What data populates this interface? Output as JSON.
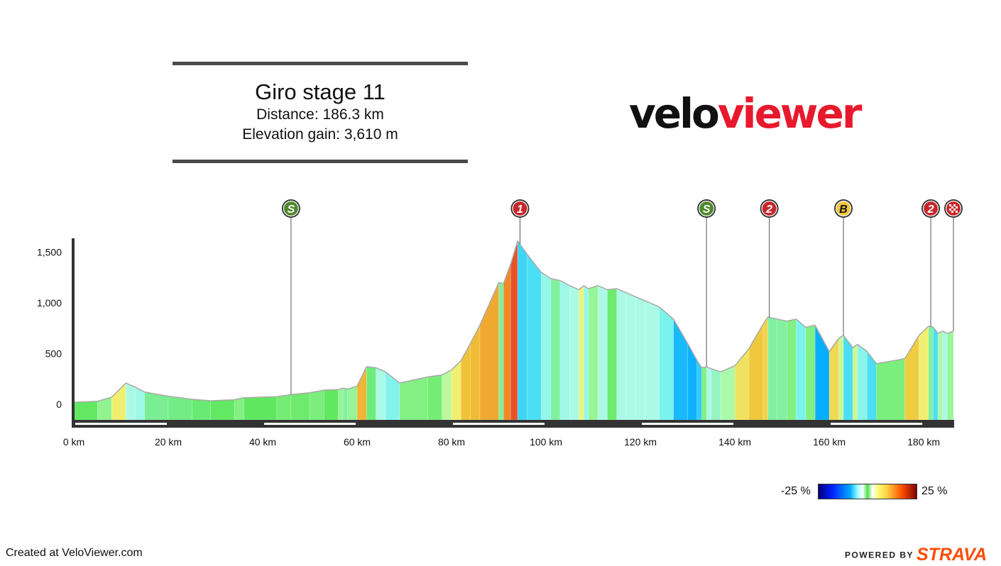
{
  "header": {
    "title": "Giro stage 11",
    "distance": "Distance: 186.3 km",
    "elevation": "Elevation gain: 3,610 m"
  },
  "logo": {
    "part1": "velo",
    "part2": "viewer"
  },
  "footer": {
    "credit": "Created at VeloViewer.com",
    "powered": "POWERED BY",
    "strava": "STRAVA"
  },
  "legend": {
    "min": "-25 %",
    "max": "25 %"
  },
  "colors": {
    "axis": "#333333",
    "logo_red": "#e8192c",
    "strava": "#fc4c02"
  },
  "chart_data": {
    "type": "area",
    "xlabel": "",
    "ylabel": "",
    "xlim": [
      0,
      186.3
    ],
    "ylim": [
      -150,
      1600
    ],
    "x_ticks": [
      {
        "value": 0,
        "label": "0 km"
      },
      {
        "value": 20,
        "label": "20 km"
      },
      {
        "value": 40,
        "label": "40 km"
      },
      {
        "value": 60,
        "label": "60 km"
      },
      {
        "value": 80,
        "label": "80 km"
      },
      {
        "value": 100,
        "label": "100 km"
      },
      {
        "value": 120,
        "label": "120 km"
      },
      {
        "value": 140,
        "label": "140 km"
      },
      {
        "value": 160,
        "label": "160 km"
      },
      {
        "value": 180,
        "label": "180 km"
      }
    ],
    "y_ticks": [
      {
        "value": 0,
        "label": "0"
      },
      {
        "value": 500,
        "label": "500"
      },
      {
        "value": 1000,
        "label": "1,000"
      },
      {
        "value": 1500,
        "label": "1,500"
      }
    ],
    "profile": [
      [
        0,
        20
      ],
      [
        5,
        30
      ],
      [
        8,
        70
      ],
      [
        11,
        210
      ],
      [
        13,
        170
      ],
      [
        15,
        120
      ],
      [
        20,
        80
      ],
      [
        25,
        50
      ],
      [
        29,
        35
      ],
      [
        34,
        45
      ],
      [
        36,
        65
      ],
      [
        43,
        75
      ],
      [
        46,
        95
      ],
      [
        50,
        115
      ],
      [
        53,
        140
      ],
      [
        56,
        145
      ],
      [
        57,
        160
      ],
      [
        58,
        150
      ],
      [
        60,
        180
      ],
      [
        62,
        370
      ],
      [
        64,
        360
      ],
      [
        66,
        320
      ],
      [
        69,
        210
      ],
      [
        75,
        270
      ],
      [
        78,
        290
      ],
      [
        80,
        340
      ],
      [
        82,
        430
      ],
      [
        84,
        600
      ],
      [
        86,
        780
      ],
      [
        90,
        1200
      ],
      [
        91,
        1190
      ],
      [
        92.5,
        1380
      ],
      [
        94,
        1610
      ],
      [
        96,
        1480
      ],
      [
        99,
        1300
      ],
      [
        101,
        1240
      ],
      [
        103,
        1220
      ],
      [
        105,
        1170
      ],
      [
        107,
        1130
      ],
      [
        108,
        1170
      ],
      [
        109,
        1140
      ],
      [
        111,
        1170
      ],
      [
        113,
        1130
      ],
      [
        115,
        1140
      ],
      [
        117,
        1100
      ],
      [
        119,
        1060
      ],
      [
        121,
        1020
      ],
      [
        124,
        960
      ],
      [
        127,
        840
      ],
      [
        130,
        600
      ],
      [
        132,
        430
      ],
      [
        133,
        360
      ],
      [
        134,
        370
      ],
      [
        135,
        350
      ],
      [
        137,
        320
      ],
      [
        140,
        380
      ],
      [
        143,
        550
      ],
      [
        146,
        790
      ],
      [
        147,
        860
      ],
      [
        149,
        840
      ],
      [
        151,
        820
      ],
      [
        153,
        840
      ],
      [
        155,
        760
      ],
      [
        157,
        780
      ],
      [
        160,
        520
      ],
      [
        162,
        650
      ],
      [
        163,
        680
      ],
      [
        165,
        560
      ],
      [
        166,
        590
      ],
      [
        168,
        520
      ],
      [
        170,
        400
      ],
      [
        176,
        450
      ],
      [
        179,
        680
      ],
      [
        181,
        770
      ],
      [
        182,
        760
      ],
      [
        183,
        700
      ],
      [
        184,
        720
      ],
      [
        185,
        700
      ],
      [
        186.3,
        720
      ]
    ],
    "gradient_range": [
      -25,
      25
    ],
    "markers": [
      {
        "km": 46,
        "label": "S",
        "type": "sprint"
      },
      {
        "km": 94.5,
        "label": "1",
        "type": "cat1"
      },
      {
        "km": 134,
        "label": "S",
        "type": "sprint"
      },
      {
        "km": 147.3,
        "label": "2",
        "type": "cat2"
      },
      {
        "km": 163,
        "label": "B",
        "type": "bonus"
      },
      {
        "km": 181.5,
        "label": "2",
        "type": "cat2"
      },
      {
        "km": 186.3,
        "label": "",
        "type": "finish"
      }
    ],
    "marker_colors": {
      "sprint": "#4e8a2c",
      "cat1": "#c8262a",
      "cat2": "#c8262a",
      "bonus": "#f2c63c",
      "finish": "#c8262a"
    }
  }
}
